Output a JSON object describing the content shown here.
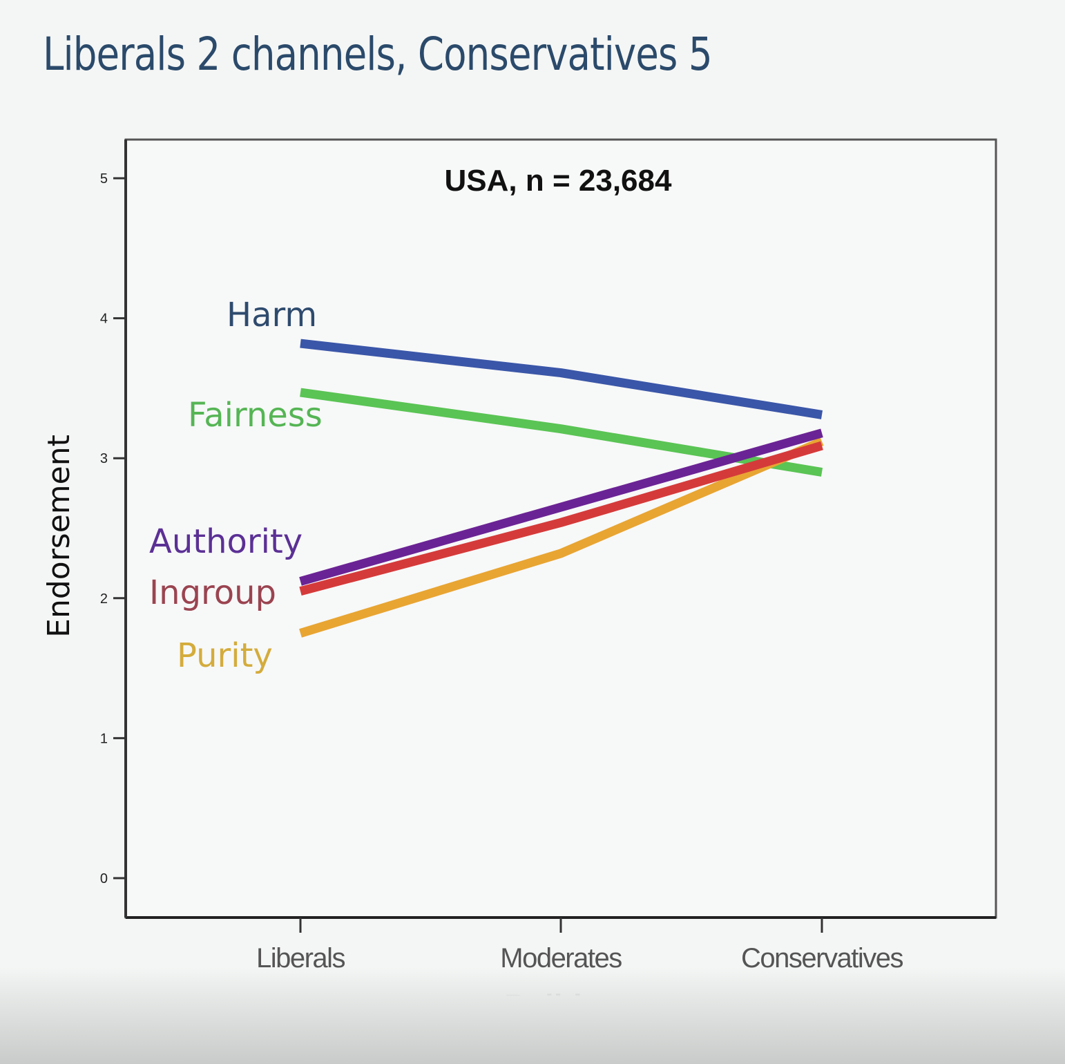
{
  "slide": {
    "title": "Liberals 2 channels, Conservatives 5"
  },
  "chart_data": {
    "type": "line",
    "title": "USA, n = 23,684",
    "xlabel": "Politics",
    "ylabel": "Endorsement",
    "categories": [
      "Liberals",
      "Moderates",
      "Conservatives"
    ],
    "ylim": [
      0,
      5
    ],
    "yticks": [
      "0",
      "1",
      "2",
      "3",
      "4",
      "5"
    ],
    "grid": false,
    "legend_position": "inline-left",
    "series": [
      {
        "name": "Harm",
        "color": "#3a56a8",
        "label_color": "#2e4b6e",
        "values": [
          3.82,
          3.61,
          3.31
        ]
      },
      {
        "name": "Fairness",
        "color": "#5ac454",
        "label_color": "#55b554",
        "values": [
          3.47,
          3.21,
          2.9
        ]
      },
      {
        "name": "Purity",
        "color": "#e8a532",
        "label_color": "#d4ac3c",
        "values": [
          1.75,
          2.32,
          3.12
        ]
      },
      {
        "name": "Ingroup",
        "color": "#d53a3a",
        "label_color": "#9a4450",
        "values": [
          2.05,
          2.54,
          3.09
        ]
      },
      {
        "name": "Authority",
        "color": "#6a2394",
        "label_color": "#5b3095",
        "values": [
          2.12,
          2.65,
          3.18
        ]
      }
    ]
  },
  "labels": {
    "harm": "Harm",
    "fairness": "Fairness",
    "authority": "Authority",
    "ingroup": "Ingroup",
    "purity": "Purity"
  }
}
